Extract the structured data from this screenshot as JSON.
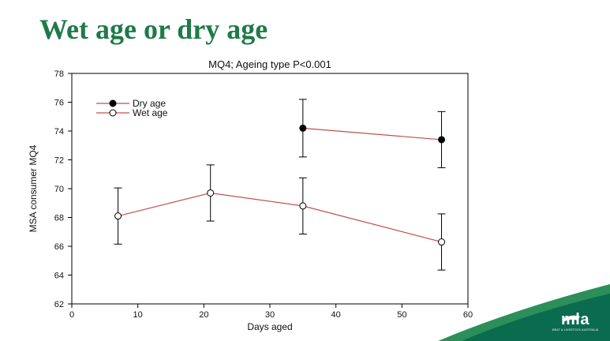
{
  "slide": {
    "title": "Wet age or dry age"
  },
  "brand": {
    "name": "mla",
    "tagline": "MEAT & LIVESTOCK AUSTRALIA",
    "colors": {
      "dark": "#0b6b4e",
      "light": "#2c8f5a"
    }
  },
  "chart_data": {
    "type": "line",
    "title": "MQ4; Ageing type P<0.001",
    "xlabel": "Days aged",
    "ylabel": "MSA consumer MQ4",
    "xlim": [
      0,
      60
    ],
    "ylim": [
      62,
      78
    ],
    "xticks": [
      0,
      10,
      20,
      30,
      40,
      50,
      60
    ],
    "yticks": [
      62,
      64,
      66,
      68,
      70,
      72,
      74,
      76,
      78
    ],
    "grid": false,
    "legend_position": "top-left",
    "series": [
      {
        "name": "Dry age",
        "marker": "filled-circle",
        "color": "#c0504d",
        "points": [
          {
            "x": 35,
            "y": 74.2,
            "err": 2.0
          },
          {
            "x": 56,
            "y": 73.4,
            "err": 1.95
          }
        ]
      },
      {
        "name": "Wet age",
        "marker": "open-circle",
        "color": "#c0504d",
        "points": [
          {
            "x": 7,
            "y": 68.1,
            "err": 1.95
          },
          {
            "x": 21,
            "y": 69.7,
            "err": 1.95
          },
          {
            "x": 35,
            "y": 68.8,
            "err": 1.95
          },
          {
            "x": 56,
            "y": 66.3,
            "err": 1.95
          }
        ]
      }
    ]
  }
}
